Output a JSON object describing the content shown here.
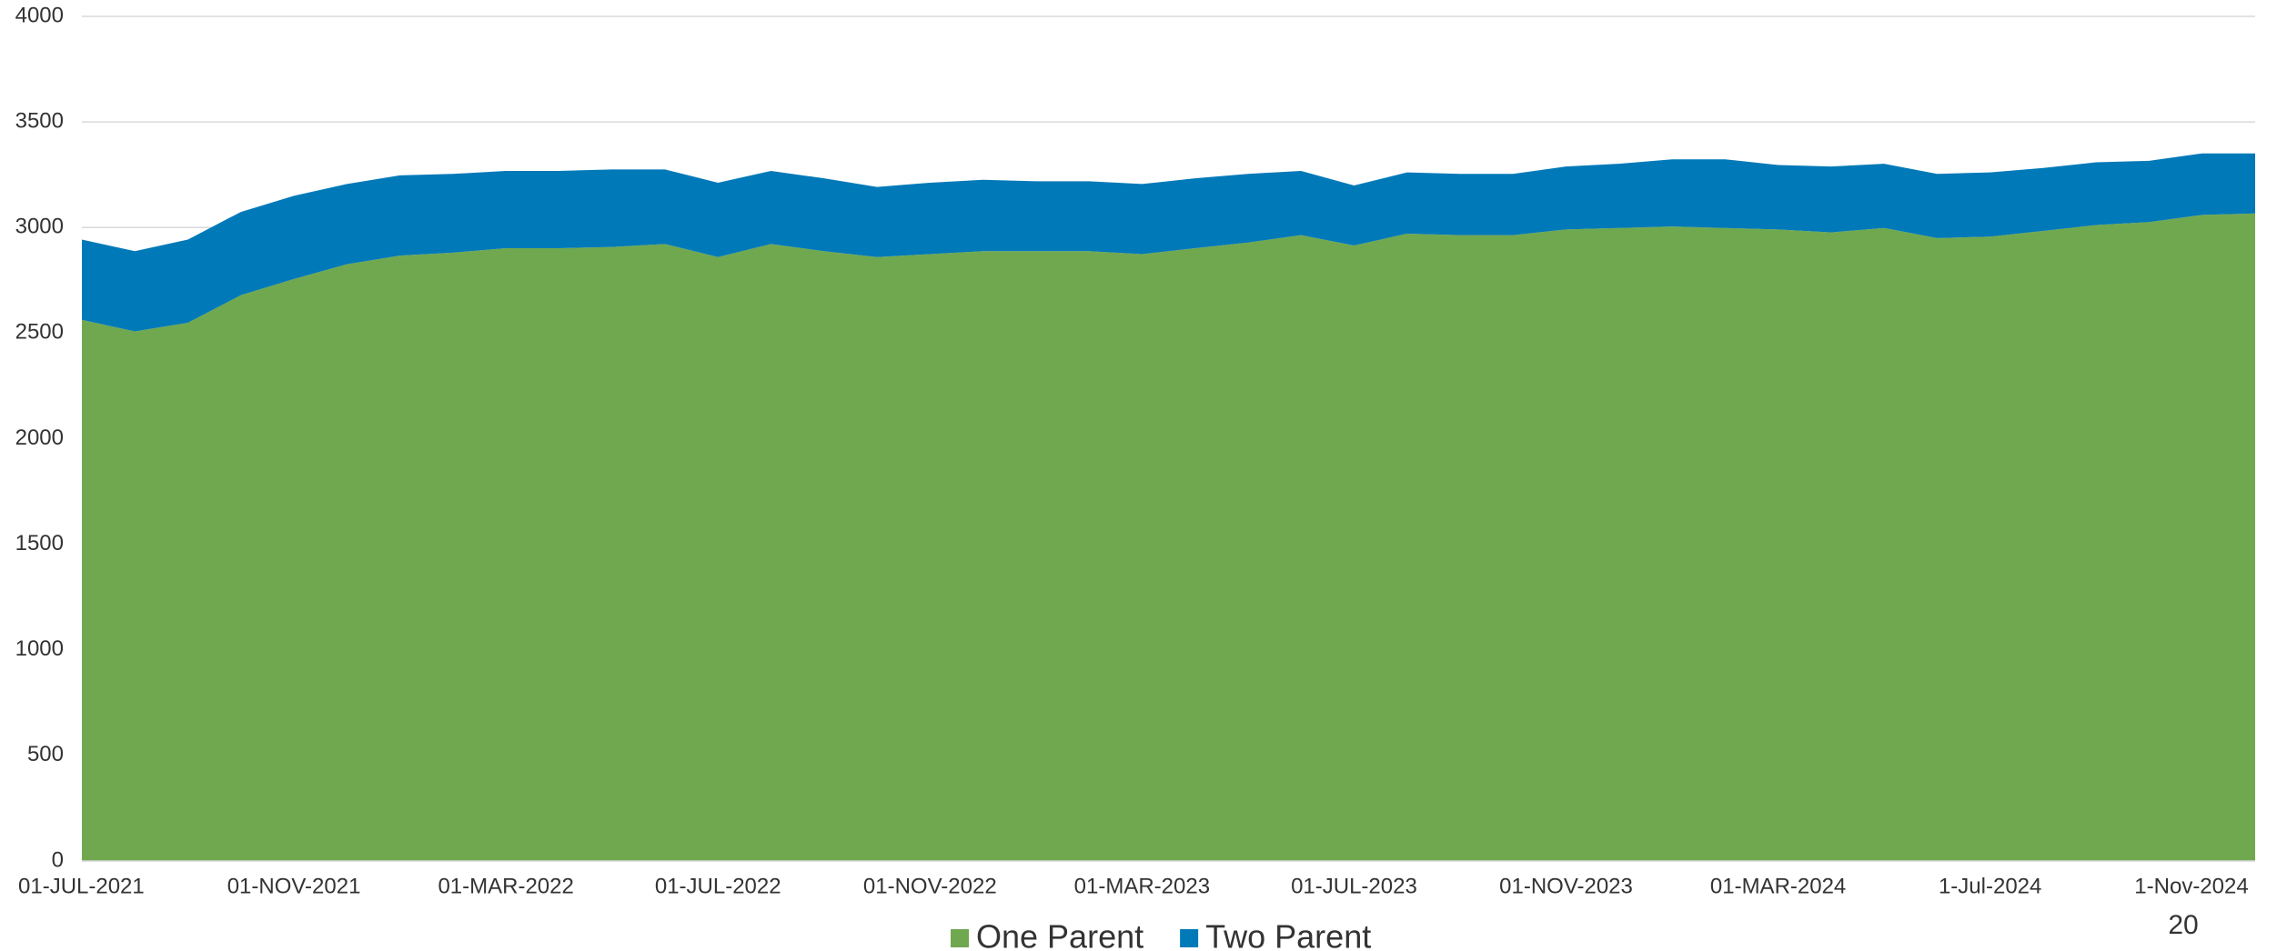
{
  "chart_data": {
    "type": "stacked_area",
    "categories": [
      "01-JUL-2021",
      null,
      null,
      null,
      "01-NOV-2021",
      null,
      null,
      null,
      "01-MAR-2022",
      null,
      null,
      null,
      "01-JUL-2022",
      null,
      null,
      null,
      "01-NOV-2022",
      null,
      null,
      null,
      "01-MAR-2023",
      null,
      null,
      null,
      "01-JUL-2023",
      null,
      null,
      null,
      "01-NOV-2023",
      null,
      null,
      null,
      "01-MAR-2024",
      null,
      null,
      null,
      "1-Jul-2024",
      null,
      null,
      null,
      "1-Nov-2024",
      null
    ],
    "series": [
      {
        "name": "One Parent",
        "color": "#70a84f",
        "values": [
          2563,
          2508,
          2549,
          2680,
          2756,
          2826,
          2867,
          2881,
          2902,
          2902,
          2908,
          2922,
          2860,
          2922,
          2888,
          2860,
          2874,
          2888,
          2888,
          2888,
          2874,
          2902,
          2929,
          2964,
          2915,
          2971,
          2964,
          2964,
          2991,
          2998,
          3005,
          2998,
          2991,
          2977,
          2998,
          2950,
          2957,
          2984,
          3012,
          3026,
          3060,
          3067
        ]
      },
      {
        "name": "Two Parent",
        "color": "#0079b8",
        "values": [
          380,
          380,
          394,
          394,
          394,
          380,
          380,
          373,
          366,
          366,
          367,
          353,
          352,
          346,
          345,
          332,
          338,
          338,
          331,
          331,
          332,
          331,
          325,
          304,
          284,
          290,
          290,
          290,
          298,
          304,
          318,
          325,
          305,
          312,
          304,
          304,
          304,
          298,
          297,
          290,
          291,
          284
        ]
      }
    ],
    "ylim": [
      0,
      4000
    ],
    "yticks": [
      0,
      500,
      1000,
      1500,
      2000,
      2500,
      3000,
      3500,
      4000
    ],
    "grid": true,
    "legend": "bottom"
  },
  "page_number": "20"
}
